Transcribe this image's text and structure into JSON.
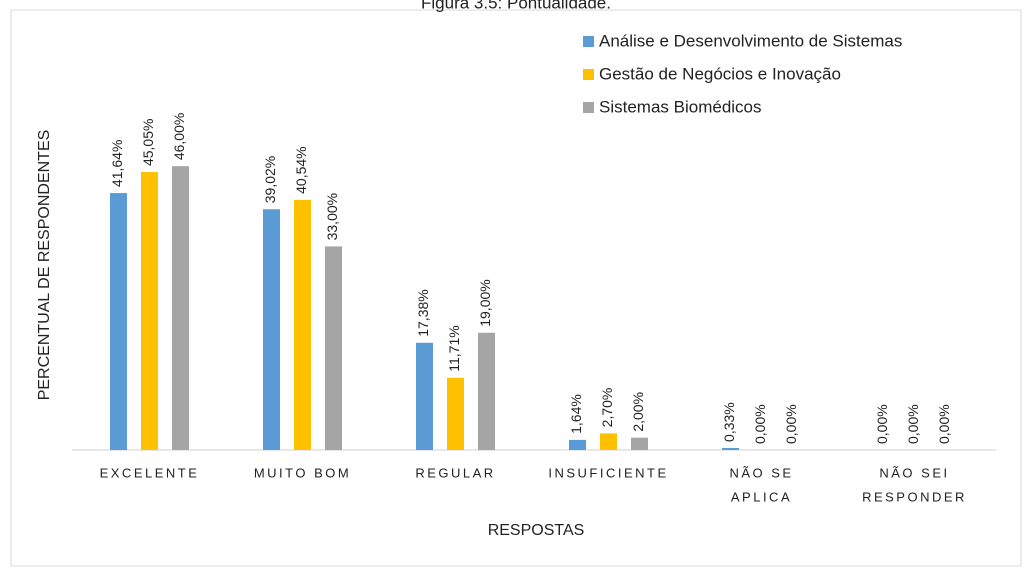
{
  "chart_data": {
    "type": "bar",
    "title": "Figura 3.5: Pontualidade.",
    "x_label": "RESPOSTAS",
    "y_label": "PERCENTUAL DE RESPONDENTES",
    "categories": [
      [
        "EXCELENTE"
      ],
      [
        "MUITO BOM"
      ],
      [
        "REGULAR"
      ],
      [
        "INSUFICIENTE"
      ],
      [
        "NÃO SE",
        "APLICA"
      ],
      [
        "NÃO SEI",
        "RESPONDER"
      ]
    ],
    "legend": "top-right",
    "series": [
      {
        "name": "Análise e Desenvolvimento de Sistemas",
        "color": "#5b9bd5",
        "values": [
          41.64,
          39.02,
          17.38,
          1.64,
          0.33,
          0
        ],
        "value_labels": [
          "41,64%",
          "39,02%",
          "17,38%",
          "1,64%",
          "0,33%",
          "0,00%"
        ]
      },
      {
        "name": "Gestão de Negócios e Inovação",
        "color": "#ffc000",
        "values": [
          45.05,
          40.54,
          11.71,
          2.7,
          0,
          0
        ],
        "value_labels": [
          "45,05%",
          "40,54%",
          "11,71%",
          "2,70%",
          "0,00%",
          "0,00%"
        ]
      },
      {
        "name": "Sistemas Biomédicos",
        "color": "#a5a5a5",
        "values": [
          46.0,
          33.0,
          19.0,
          2.0,
          0,
          0
        ],
        "value_labels": [
          "46,00%",
          "33,00%",
          "19,00%",
          "2,00%",
          "0,00%",
          "0,00%"
        ]
      }
    ]
  }
}
